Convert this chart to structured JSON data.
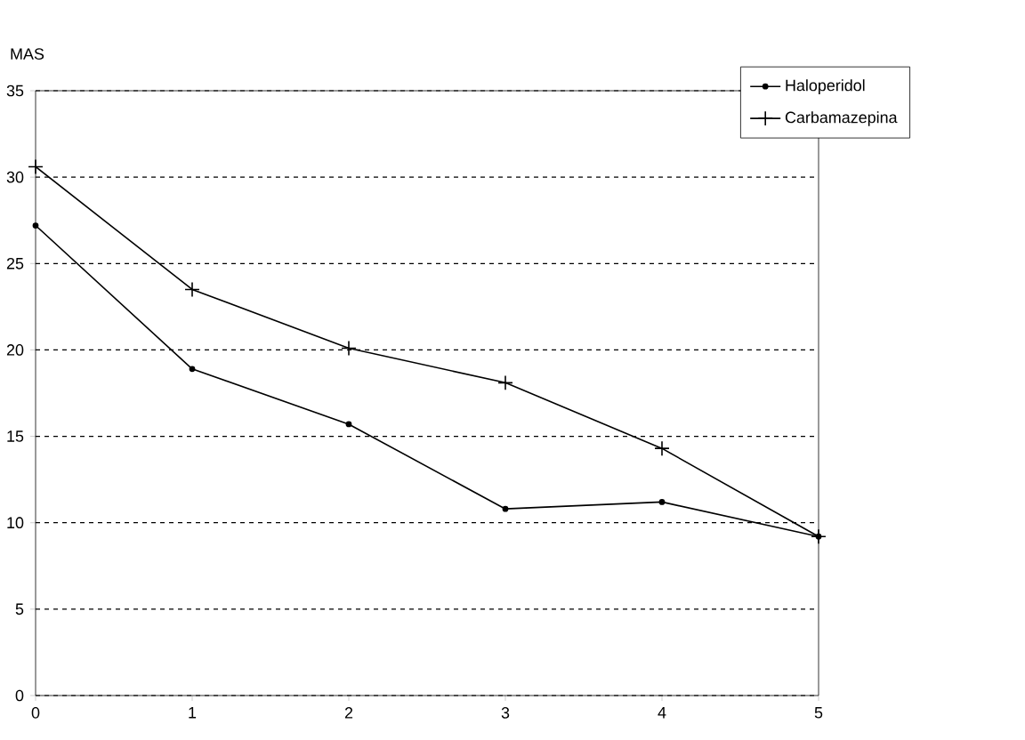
{
  "chart_data": {
    "type": "line",
    "ylabel": "MAS",
    "x": [
      0,
      1,
      2,
      3,
      4,
      5
    ],
    "xlim": [
      0,
      5
    ],
    "xticks": [
      0,
      1,
      2,
      3,
      4,
      5
    ],
    "ylim": [
      0,
      35
    ],
    "yticks": [
      0,
      5,
      10,
      15,
      20,
      25,
      30,
      35
    ],
    "grid": "y",
    "legend": "top right",
    "line_style": "solid",
    "series": [
      {
        "name": "Haloperidol",
        "color": "#000000",
        "marker": "circle",
        "values": [
          27.2,
          18.9,
          15.7,
          10.8,
          11.2,
          9.2
        ]
      },
      {
        "name": "Carbamazepina",
        "color": "#000000",
        "marker": "cross",
        "values": [
          30.6,
          23.5,
          20.1,
          18.1,
          14.3,
          9.2
        ]
      }
    ]
  }
}
